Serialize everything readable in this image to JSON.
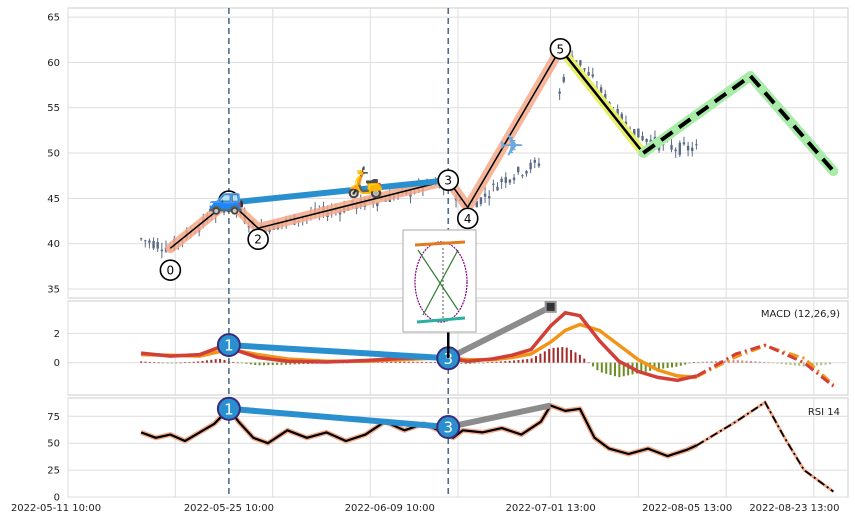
{
  "chart_data": [
    {
      "type": "candlestick",
      "panel": "price",
      "ylim": [
        34,
        66
      ],
      "yticks": [
        35,
        40,
        45,
        50,
        55,
        60,
        65
      ],
      "xticks": [
        "2022-05-11 10:00",
        "2022-05-25 10:00",
        "2022-06-09 10:00",
        "2022-07-01 13:00",
        "2022-08-05 13:00",
        "2022-08-23 13:00"
      ],
      "price_path": [
        [
          0,
          40.5
        ],
        [
          6,
          39.5
        ],
        [
          12,
          42
        ],
        [
          18,
          44.5
        ],
        [
          24,
          41.5
        ],
        [
          30,
          42.5
        ],
        [
          38,
          43.5
        ],
        [
          46,
          44.5
        ],
        [
          54,
          45.5
        ],
        [
          60,
          46.5
        ],
        [
          64,
          46
        ],
        [
          66,
          44
        ],
        [
          70,
          45
        ],
        [
          74,
          47
        ],
        [
          78,
          48
        ],
        [
          82,
          49
        ],
        [
          84,
          52
        ],
        [
          86,
          57
        ],
        [
          88,
          61
        ],
        [
          90,
          60
        ],
        [
          94,
          57
        ],
        [
          98,
          54
        ],
        [
          102,
          52
        ],
        [
          106,
          51
        ],
        [
          110,
          50.5
        ],
        [
          114,
          50.5
        ]
      ],
      "wave_points": [
        {
          "label": "0",
          "x": 6,
          "y": 39.5
        },
        {
          "label": "1",
          "x": 18,
          "y": 44.7
        },
        {
          "label": "2",
          "x": 24,
          "y": 41.7
        },
        {
          "label": "3",
          "x": 63,
          "y": 47.0
        },
        {
          "label": "4",
          "x": 67,
          "y": 44.0
        },
        {
          "label": "5",
          "x": 86,
          "y": 61.5
        }
      ],
      "correction_line": [
        [
          86,
          61.5
        ],
        [
          103,
          50.0
        ]
      ],
      "projection": [
        [
          103,
          50.0
        ],
        [
          125,
          58.5
        ],
        [
          142,
          48.0
        ]
      ],
      "trend_line": [
        [
          18,
          44.5
        ],
        [
          63,
          47.0
        ]
      ],
      "vlines_x": [
        18,
        63
      ],
      "icons": [
        {
          "name": "car",
          "glyph": "🚙",
          "x": 17.5,
          "y": 45
        },
        {
          "name": "scooter",
          "glyph": "🛵",
          "x": 46,
          "y": 46.8
        },
        {
          "name": "airplane",
          "glyph": "✈",
          "x": 76,
          "y": 50.8
        }
      ]
    },
    {
      "type": "macd",
      "panel": "macd",
      "legend": "MACD (12,26,9)",
      "ylim": [
        -2.2,
        4.2
      ],
      "yticks": [
        0,
        2
      ],
      "macd": [
        [
          0,
          0.65
        ],
        [
          6,
          0.45
        ],
        [
          12,
          0.55
        ],
        [
          16,
          1.05
        ],
        [
          19,
          0.9
        ],
        [
          24,
          0.35
        ],
        [
          30,
          0.1
        ],
        [
          38,
          0.05
        ],
        [
          46,
          0.15
        ],
        [
          54,
          0.3
        ],
        [
          60,
          0.35
        ],
        [
          64,
          0.25
        ],
        [
          67,
          0.1
        ],
        [
          72,
          0.25
        ],
        [
          76,
          0.5
        ],
        [
          80,
          0.9
        ],
        [
          84,
          2.5
        ],
        [
          87,
          3.4
        ],
        [
          90,
          3.2
        ],
        [
          94,
          1.5
        ],
        [
          98,
          0.1
        ],
        [
          102,
          -0.6
        ],
        [
          106,
          -1.0
        ],
        [
          110,
          -1.2
        ],
        [
          114,
          -0.9
        ]
      ],
      "signal": [
        [
          0,
          0.55
        ],
        [
          6,
          0.5
        ],
        [
          12,
          0.45
        ],
        [
          16,
          0.75
        ],
        [
          19,
          0.85
        ],
        [
          24,
          0.55
        ],
        [
          30,
          0.25
        ],
        [
          38,
          0.1
        ],
        [
          46,
          0.1
        ],
        [
          54,
          0.22
        ],
        [
          60,
          0.3
        ],
        [
          64,
          0.3
        ],
        [
          67,
          0.2
        ],
        [
          72,
          0.2
        ],
        [
          76,
          0.35
        ],
        [
          80,
          0.6
        ],
        [
          84,
          1.4
        ],
        [
          87,
          2.2
        ],
        [
          90,
          2.6
        ],
        [
          94,
          2.2
        ],
        [
          98,
          1.2
        ],
        [
          102,
          0.2
        ],
        [
          106,
          -0.5
        ],
        [
          110,
          -0.9
        ],
        [
          114,
          -1.0
        ]
      ],
      "proj_macd": [
        [
          114,
          -0.9
        ],
        [
          122,
          0.6
        ],
        [
          128,
          1.2
        ],
        [
          136,
          0.0
        ],
        [
          142,
          -1.6
        ]
      ],
      "proj_signal": [
        [
          114,
          -0.95
        ],
        [
          122,
          0.4
        ],
        [
          128,
          1.15
        ],
        [
          136,
          0.3
        ],
        [
          142,
          -1.5
        ]
      ],
      "points": [
        {
          "label": "1",
          "x": 18,
          "y": 1.2
        },
        {
          "label": "3",
          "x": 63,
          "y": 0.3
        }
      ],
      "gray_line": [
        [
          63,
          0.3
        ],
        [
          84,
          3.8
        ]
      ],
      "gray_dot": [
        84,
        3.8
      ]
    },
    {
      "type": "rsi",
      "panel": "rsi",
      "legend": "RSI 14",
      "ylim": [
        0,
        92
      ],
      "yticks": [
        0,
        25,
        50,
        75
      ],
      "rsi": [
        [
          0,
          60
        ],
        [
          3,
          55
        ],
        [
          6,
          58
        ],
        [
          9,
          52
        ],
        [
          12,
          60
        ],
        [
          15,
          68
        ],
        [
          18,
          82
        ],
        [
          20,
          70
        ],
        [
          23,
          55
        ],
        [
          26,
          50
        ],
        [
          30,
          62
        ],
        [
          34,
          55
        ],
        [
          38,
          60
        ],
        [
          42,
          52
        ],
        [
          46,
          58
        ],
        [
          50,
          70
        ],
        [
          54,
          62
        ],
        [
          58,
          68
        ],
        [
          62,
          60
        ],
        [
          64,
          55
        ],
        [
          66,
          62
        ],
        [
          70,
          60
        ],
        [
          74,
          64
        ],
        [
          78,
          58
        ],
        [
          82,
          70
        ],
        [
          84,
          85
        ],
        [
          87,
          80
        ],
        [
          90,
          82
        ],
        [
          93,
          55
        ],
        [
          96,
          45
        ],
        [
          100,
          40
        ],
        [
          104,
          45
        ],
        [
          108,
          38
        ],
        [
          112,
          44
        ],
        [
          114,
          48
        ]
      ],
      "proj_rsi": [
        [
          114,
          48
        ],
        [
          122,
          70
        ],
        [
          128,
          88
        ],
        [
          132,
          55
        ],
        [
          136,
          25
        ],
        [
          142,
          5
        ]
      ],
      "points": [
        {
          "label": "1",
          "x": 18,
          "y": 82
        },
        {
          "label": "3",
          "x": 63,
          "y": 65
        }
      ],
      "gray_line": [
        [
          63,
          65
        ],
        [
          84,
          85
        ]
      ]
    }
  ],
  "labels": {
    "macd_legend": "MACD (12,26,9)",
    "rsi_legend": "RSI 14"
  },
  "colors": {
    "up_candle": "#5b6b85",
    "wave_line": "#f4a98a",
    "trend_blue": "#2a8fce",
    "correction_yellow": "#e8f06a",
    "projection_green": "#a9eba9",
    "macd_orange": "#f29418",
    "macd_red": "#d23f37",
    "hist_pos": "#a52a2a",
    "hist_neg": "#6b8e23",
    "vline": "#4f6d8a"
  }
}
